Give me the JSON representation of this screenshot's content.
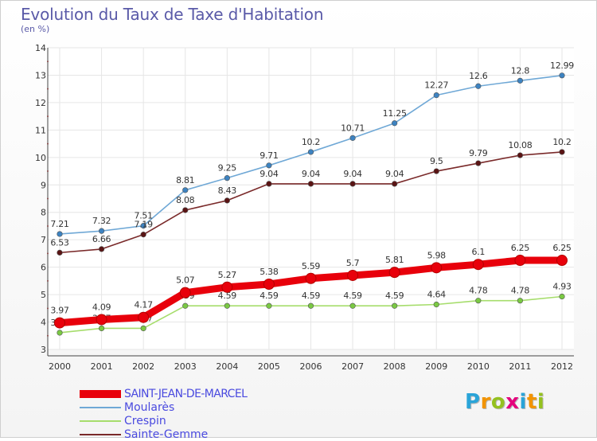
{
  "chart_data": {
    "type": "line",
    "title": "Evolution du Taux de Taxe d'Habitation",
    "subtitle": "(en %)",
    "x": [
      "2000",
      "2001",
      "2002",
      "2003",
      "2004",
      "2005",
      "2006",
      "2007",
      "2008",
      "2009",
      "2010",
      "2011",
      "2012"
    ],
    "ylim": [
      3,
      14
    ],
    "yticks": [
      "3",
      "4",
      "5",
      "6",
      "7",
      "8",
      "9",
      "10",
      "11",
      "12",
      "13",
      "14"
    ],
    "grid": true,
    "series": [
      {
        "name": "SAINT-JEAN-DE-MARCEL",
        "color": "#e8000b",
        "thick": true,
        "values": [
          3.97,
          4.09,
          4.17,
          5.07,
          5.27,
          5.38,
          5.59,
          5.7,
          5.81,
          5.98,
          6.1,
          6.25,
          6.25
        ],
        "labels": [
          "3.97",
          "4.09",
          "4.17",
          "5.07",
          "5.27",
          "5.38",
          "5.59",
          "5.7",
          "5.81",
          "5.98",
          "6.1",
          "6.25",
          "6.25"
        ]
      },
      {
        "name": "Moularès",
        "color": "#6fa8d6",
        "marker": "#3d83c1",
        "values": [
          7.21,
          7.32,
          7.51,
          8.81,
          9.25,
          9.71,
          10.2,
          10.71,
          11.25,
          12.27,
          12.6,
          12.8,
          12.99
        ],
        "labels": [
          "7.21",
          "7.32",
          "7.51",
          "8.81",
          "9.25",
          "9.71",
          "10.2",
          "10.71",
          "11.25",
          "12.27",
          "12.6",
          "12.8",
          "12.99"
        ]
      },
      {
        "name": "Crespin",
        "color": "#a6dd6c",
        "marker": "#7ac943",
        "values": [
          3.61,
          3.77,
          3.77,
          4.59,
          4.59,
          4.59,
          4.59,
          4.59,
          4.59,
          4.64,
          4.78,
          4.78,
          4.93
        ],
        "labels": [
          "3.61",
          "3.77",
          "3.77",
          "4.59",
          "4.59",
          "4.59",
          "4.59",
          "4.59",
          "4.59",
          "4.64",
          "4.78",
          "4.78",
          "4.93"
        ]
      },
      {
        "name": "Sainte-Gemme",
        "color": "#7a2a2a",
        "marker": "#5a1414",
        "values": [
          6.53,
          6.66,
          7.19,
          8.08,
          8.43,
          9.04,
          9.04,
          9.04,
          9.04,
          9.5,
          9.79,
          10.08,
          10.2
        ],
        "labels": [
          "6.53",
          "6.66",
          "7.19",
          "8.08",
          "8.43",
          "9.04",
          "9.04",
          "9.04",
          "9.04",
          "9.5",
          "9.79",
          "10.08",
          "10.2"
        ]
      }
    ],
    "legend_position": "bottom-left"
  },
  "logo": {
    "letters": [
      "P",
      "r",
      "o",
      "x",
      "i",
      "t",
      "i"
    ],
    "colors": [
      "#2aa4d8",
      "#f29400",
      "#94c11f",
      "#e4007c",
      "#2aa4d8",
      "#f29400",
      "#94c11f"
    ]
  }
}
